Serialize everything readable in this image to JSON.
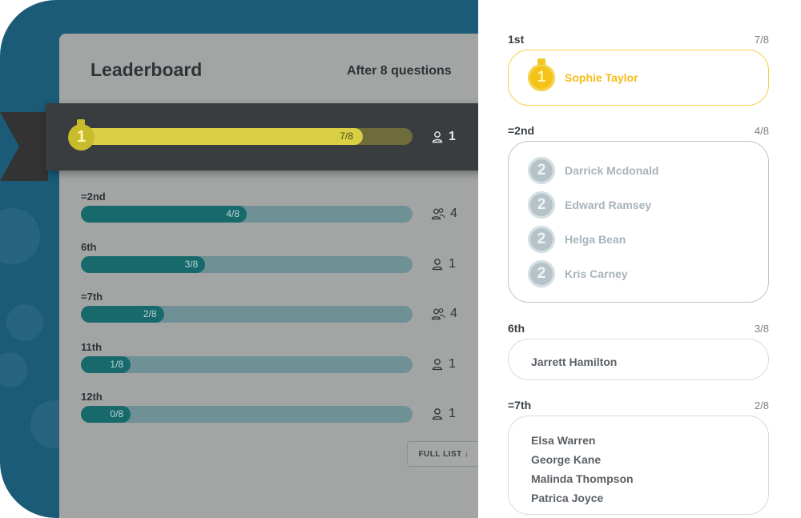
{
  "leaderboard": {
    "title": "Leaderboard",
    "subtitle": "After 8 questions",
    "first": {
      "fill": 0.85,
      "label": "7/8",
      "medal": "1",
      "count": "1"
    },
    "rows": [
      {
        "rank": "=2nd",
        "label": "4/8",
        "fill": 0.5,
        "count": "4",
        "icon": "group-icon"
      },
      {
        "rank": "6th",
        "label": "3/8",
        "fill": 0.375,
        "count": "1",
        "icon": "person-icon"
      },
      {
        "rank": "=7th",
        "label": "2/8",
        "fill": 0.25,
        "count": "4",
        "icon": "group-icon"
      },
      {
        "rank": "11th",
        "label": "1/8",
        "fill": 0.15,
        "count": "1",
        "icon": "person-icon"
      },
      {
        "rank": "12th",
        "label": "0/8",
        "fill": 0.15,
        "count": "1",
        "icon": "person-icon"
      }
    ],
    "full_list": "FULL LIST ↓"
  },
  "panel": {
    "groups": [
      {
        "rank": "1st",
        "score": "7/8",
        "medal": "1",
        "names": [
          "Sophie Taylor"
        ]
      },
      {
        "rank": "=2nd",
        "score": "4/8",
        "medal": "2",
        "names": [
          "Darrick Mcdonald",
          "Edward Ramsey",
          "Helga Bean",
          "Kris Carney"
        ]
      },
      {
        "rank": "6th",
        "score": "3/8",
        "names": [
          "Jarrett Hamilton"
        ]
      },
      {
        "rank": "=7th",
        "score": "2/8",
        "names": [
          "Elsa Warren",
          "George Kane",
          "Malinda Thompson",
          "Patrica Joyce"
        ]
      }
    ]
  },
  "colors": {
    "background": "#1b5b78",
    "gold": "#f5c21a",
    "silver": "#b5c3c9",
    "bar_fill": "#17696b"
  }
}
